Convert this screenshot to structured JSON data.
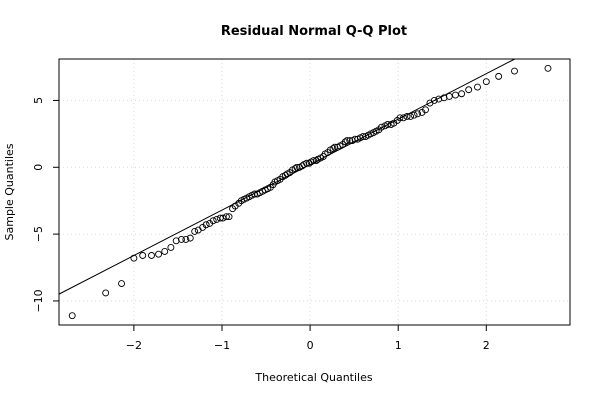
{
  "chart_data": {
    "type": "scatter",
    "title": "Residual Normal Q-Q Plot",
    "xlabel": "Theoretical Quantiles",
    "ylabel": "Sample Quantiles",
    "xlim": [
      -2.85,
      2.95
    ],
    "ylim": [
      -11.8,
      8.1
    ],
    "x_ticks": [
      -2,
      -1,
      0,
      1,
      2
    ],
    "y_ticks": [
      -10,
      -5,
      0,
      5
    ],
    "x_tick_labels": [
      "−2",
      "−1",
      "0",
      "1",
      "2"
    ],
    "y_tick_labels": [
      "−10",
      "−5",
      "0",
      "5"
    ],
    "grid": true,
    "reference_line": {
      "intercept": 0.2,
      "slope": 3.4
    },
    "points": [
      [
        -2.7,
        -11.1
      ],
      [
        -2.32,
        -9.4
      ],
      [
        -2.14,
        -8.7
      ],
      [
        -2.0,
        -6.8
      ],
      [
        -1.9,
        -6.6
      ],
      [
        -1.8,
        -6.6
      ],
      [
        -1.72,
        -6.5
      ],
      [
        -1.65,
        -6.3
      ],
      [
        -1.58,
        -6.0
      ],
      [
        -1.52,
        -5.5
      ],
      [
        -1.46,
        -5.4
      ],
      [
        -1.41,
        -5.4
      ],
      [
        -1.36,
        -5.3
      ],
      [
        -1.31,
        -4.8
      ],
      [
        -1.27,
        -4.7
      ],
      [
        -1.22,
        -4.5
      ],
      [
        -1.18,
        -4.3
      ],
      [
        -1.14,
        -4.2
      ],
      [
        -1.1,
        -4.0
      ],
      [
        -1.06,
        -3.9
      ],
      [
        -1.02,
        -3.8
      ],
      [
        -0.99,
        -3.8
      ],
      [
        -0.95,
        -3.7
      ],
      [
        -0.92,
        -3.7
      ],
      [
        -0.88,
        -3.1
      ],
      [
        -0.85,
        -2.9
      ],
      [
        -0.81,
        -2.7
      ],
      [
        -0.78,
        -2.5
      ],
      [
        -0.75,
        -2.4
      ],
      [
        -0.72,
        -2.3
      ],
      [
        -0.69,
        -2.2
      ],
      [
        -0.66,
        -2.1
      ],
      [
        -0.63,
        -2.0
      ],
      [
        -0.6,
        -2.0
      ],
      [
        -0.57,
        -1.9
      ],
      [
        -0.54,
        -1.8
      ],
      [
        -0.51,
        -1.7
      ],
      [
        -0.48,
        -1.6
      ],
      [
        -0.45,
        -1.5
      ],
      [
        -0.42,
        -1.3
      ],
      [
        -0.4,
        -1.1
      ],
      [
        -0.37,
        -1.0
      ],
      [
        -0.34,
        -0.9
      ],
      [
        -0.31,
        -0.7
      ],
      [
        -0.28,
        -0.6
      ],
      [
        -0.26,
        -0.5
      ],
      [
        -0.23,
        -0.4
      ],
      [
        -0.2,
        -0.2
      ],
      [
        -0.17,
        -0.1
      ],
      [
        -0.15,
        0.0
      ],
      [
        -0.12,
        0.0
      ],
      [
        -0.09,
        0.1
      ],
      [
        -0.07,
        0.2
      ],
      [
        -0.04,
        0.3
      ],
      [
        -0.01,
        0.3
      ],
      [
        0.01,
        0.4
      ],
      [
        0.04,
        0.5
      ],
      [
        0.07,
        0.5
      ],
      [
        0.09,
        0.6
      ],
      [
        0.12,
        0.7
      ],
      [
        0.15,
        0.8
      ],
      [
        0.17,
        1.0
      ],
      [
        0.2,
        1.1
      ],
      [
        0.23,
        1.3
      ],
      [
        0.26,
        1.4
      ],
      [
        0.28,
        1.5
      ],
      [
        0.31,
        1.5
      ],
      [
        0.34,
        1.6
      ],
      [
        0.37,
        1.7
      ],
      [
        0.4,
        1.9
      ],
      [
        0.42,
        2.0
      ],
      [
        0.45,
        2.0
      ],
      [
        0.48,
        2.0
      ],
      [
        0.51,
        2.1
      ],
      [
        0.54,
        2.1
      ],
      [
        0.57,
        2.2
      ],
      [
        0.6,
        2.3
      ],
      [
        0.63,
        2.3
      ],
      [
        0.66,
        2.4
      ],
      [
        0.69,
        2.5
      ],
      [
        0.72,
        2.6
      ],
      [
        0.75,
        2.7
      ],
      [
        0.78,
        2.8
      ],
      [
        0.81,
        3.0
      ],
      [
        0.85,
        3.1
      ],
      [
        0.88,
        3.2
      ],
      [
        0.92,
        3.2
      ],
      [
        0.95,
        3.3
      ],
      [
        0.99,
        3.5
      ],
      [
        1.02,
        3.7
      ],
      [
        1.06,
        3.7
      ],
      [
        1.1,
        3.8
      ],
      [
        1.14,
        3.8
      ],
      [
        1.18,
        3.9
      ],
      [
        1.22,
        4.0
      ],
      [
        1.27,
        4.1
      ],
      [
        1.31,
        4.3
      ],
      [
        1.36,
        4.8
      ],
      [
        1.41,
        5.0
      ],
      [
        1.46,
        5.1
      ],
      [
        1.52,
        5.2
      ],
      [
        1.58,
        5.3
      ],
      [
        1.65,
        5.4
      ],
      [
        1.72,
        5.5
      ],
      [
        1.8,
        5.8
      ],
      [
        1.9,
        6.0
      ],
      [
        2.0,
        6.4
      ],
      [
        2.14,
        6.8
      ],
      [
        2.32,
        7.2
      ],
      [
        2.7,
        7.4
      ]
    ]
  }
}
